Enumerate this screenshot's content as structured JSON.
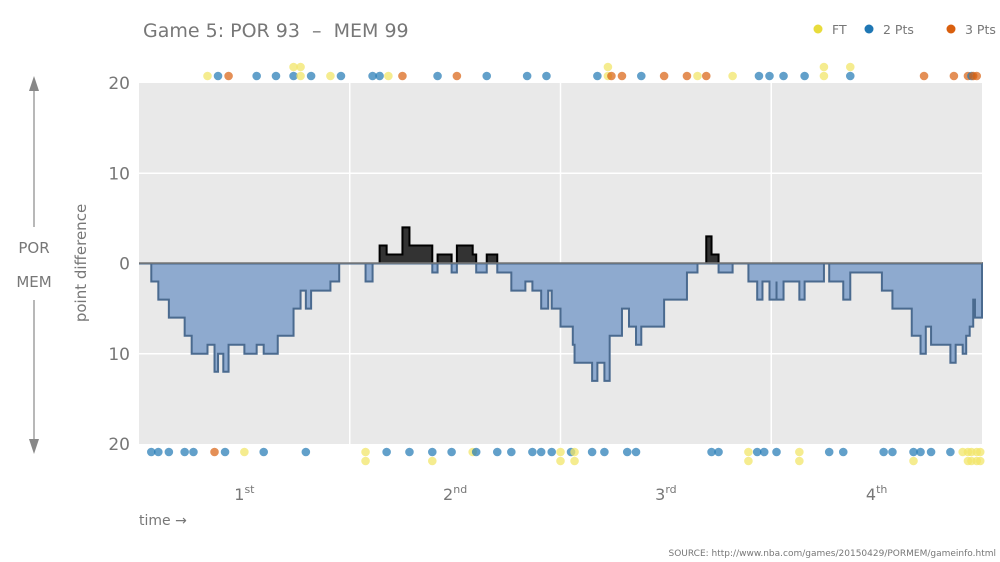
{
  "chart_data": {
    "type": "area",
    "title": "Game 5: POR 93  –  MEM 99",
    "xlabel": "time →",
    "ylabel": "point difference",
    "side_labels": {
      "top": "POR",
      "bottom": "MEM"
    },
    "source": "SOURCE: http://www.nba.com/games/20150429/PORMEM/gameinfo.html",
    "xlim": [
      0,
      48
    ],
    "ylim": [
      -20,
      20
    ],
    "y_ticks": [
      {
        "value": 20,
        "label": "20"
      },
      {
        "value": 10,
        "label": "10"
      },
      {
        "value": 0,
        "label": "0"
      },
      {
        "value": -10,
        "label": "10"
      },
      {
        "value": -20,
        "label": "20"
      }
    ],
    "quarters": [
      {
        "num": "1",
        "sup": "st"
      },
      {
        "num": "2",
        "sup": "nd"
      },
      {
        "num": "3",
        "sup": "rd"
      },
      {
        "num": "4",
        "sup": "th"
      }
    ],
    "grid": true,
    "legend_position": "top-right",
    "legend": [
      {
        "key": "FT",
        "label": "FT",
        "color": "#e8dc3c"
      },
      {
        "key": "2",
        "label": "2 Pts",
        "color": "#1f77b4"
      },
      {
        "key": "3",
        "label": "3 Pts",
        "color": "#d95f0e"
      }
    ],
    "colors": {
      "por_lead_fill": "#333333",
      "mem_lead_fill": "#8eaacf",
      "mem_lead_stroke": "#4a6a8f",
      "plot_bg": "#e9e9e9"
    },
    "score_diff": [
      [
        0,
        0
      ],
      [
        0.7,
        -2
      ],
      [
        1.1,
        -4
      ],
      [
        1.7,
        -6
      ],
      [
        2.6,
        -8
      ],
      [
        3.0,
        -10
      ],
      [
        3.9,
        -9
      ],
      [
        4.3,
        -12
      ],
      [
        4.5,
        -10
      ],
      [
        4.8,
        -12
      ],
      [
        5.1,
        -9
      ],
      [
        6.0,
        -10
      ],
      [
        6.7,
        -9
      ],
      [
        7.1,
        -10
      ],
      [
        7.9,
        -8
      ],
      [
        8.8,
        -5
      ],
      [
        9.2,
        -3
      ],
      [
        9.5,
        -5
      ],
      [
        9.8,
        -3
      ],
      [
        10.9,
        -2
      ],
      [
        11.4,
        0
      ],
      [
        12.9,
        -2
      ],
      [
        13.3,
        0
      ],
      [
        13.7,
        2
      ],
      [
        14.1,
        1
      ],
      [
        15.0,
        4
      ],
      [
        15.4,
        2
      ],
      [
        16.7,
        -1
      ],
      [
        17.0,
        1
      ],
      [
        17.8,
        -1
      ],
      [
        18.1,
        2
      ],
      [
        19.0,
        1
      ],
      [
        19.2,
        -1
      ],
      [
        19.8,
        1
      ],
      [
        20.4,
        -1
      ],
      [
        21.2,
        -3
      ],
      [
        22.0,
        -2
      ],
      [
        22.4,
        -3
      ],
      [
        22.9,
        -5
      ],
      [
        23.3,
        -3
      ],
      [
        23.5,
        -5
      ],
      [
        24.0,
        -7
      ],
      [
        24.7,
        -9
      ],
      [
        24.8,
        -11
      ],
      [
        25.8,
        -13
      ],
      [
        26.1,
        -11
      ],
      [
        26.5,
        -13
      ],
      [
        26.8,
        -8
      ],
      [
        27.5,
        -5
      ],
      [
        27.9,
        -7
      ],
      [
        28.3,
        -9
      ],
      [
        28.6,
        -7
      ],
      [
        29.9,
        -4
      ],
      [
        31.2,
        -1
      ],
      [
        31.8,
        0
      ],
      [
        32.3,
        3
      ],
      [
        32.6,
        1
      ],
      [
        33.0,
        -1
      ],
      [
        33.8,
        0
      ],
      [
        34.7,
        -2
      ],
      [
        35.2,
        -4
      ],
      [
        35.5,
        -2
      ],
      [
        35.9,
        -4
      ],
      [
        36.3,
        -2
      ],
      [
        36.3,
        -4
      ],
      [
        36.7,
        -2
      ],
      [
        37.6,
        -4
      ],
      [
        37.9,
        -2
      ],
      [
        39.0,
        0
      ],
      [
        39.3,
        -2
      ],
      [
        40.1,
        -4
      ],
      [
        40.5,
        -1
      ],
      [
        42.3,
        -3
      ],
      [
        42.9,
        -5
      ],
      [
        44.0,
        -8
      ],
      [
        44.5,
        -10
      ],
      [
        44.8,
        -7
      ],
      [
        45.1,
        -9
      ],
      [
        46.2,
        -11
      ],
      [
        46.5,
        -9
      ],
      [
        46.9,
        -10
      ],
      [
        47.1,
        -8
      ],
      [
        47.3,
        -7
      ],
      [
        47.5,
        -4
      ],
      [
        47.6,
        -6
      ],
      [
        48,
        -6
      ]
    ],
    "por_scores": [
      [
        3.9,
        "FT"
      ],
      [
        4.5,
        "2"
      ],
      [
        5.1,
        "3"
      ],
      [
        6.7,
        "2"
      ],
      [
        7.8,
        "2"
      ],
      [
        8.8,
        "2"
      ],
      [
        8.8,
        "FT"
      ],
      [
        9.2,
        "FT"
      ],
      [
        9.2,
        "FT"
      ],
      [
        9.8,
        "2"
      ],
      [
        10.9,
        "FT"
      ],
      [
        11.5,
        "2"
      ],
      [
        13.3,
        "2"
      ],
      [
        13.7,
        "2"
      ],
      [
        14.2,
        "FT"
      ],
      [
        15.0,
        "3"
      ],
      [
        17.0,
        "2"
      ],
      [
        18.1,
        "3"
      ],
      [
        19.8,
        "2"
      ],
      [
        22.1,
        "2"
      ],
      [
        23.2,
        "2"
      ],
      [
        26.1,
        "2"
      ],
      [
        26.7,
        "FT"
      ],
      [
        26.7,
        "FT"
      ],
      [
        26.9,
        "3"
      ],
      [
        27.5,
        "3"
      ],
      [
        28.6,
        "2"
      ],
      [
        29.9,
        "3"
      ],
      [
        31.2,
        "3"
      ],
      [
        31.8,
        "FT"
      ],
      [
        32.3,
        "3"
      ],
      [
        33.8,
        "FT"
      ],
      [
        35.3,
        "2"
      ],
      [
        35.9,
        "2"
      ],
      [
        36.7,
        "2"
      ],
      [
        37.9,
        "2"
      ],
      [
        39.0,
        "FT"
      ],
      [
        39.0,
        "FT"
      ],
      [
        40.5,
        "2"
      ],
      [
        40.5,
        "FT"
      ],
      [
        44.7,
        "3"
      ],
      [
        46.4,
        "3"
      ],
      [
        47.2,
        "3"
      ],
      [
        47.4,
        "2"
      ],
      [
        47.5,
        "3"
      ],
      [
        47.7,
        "3"
      ]
    ],
    "mem_scores": [
      [
        0.7,
        "2"
      ],
      [
        1.1,
        "2"
      ],
      [
        1.7,
        "2"
      ],
      [
        2.6,
        "2"
      ],
      [
        3.1,
        "2"
      ],
      [
        4.3,
        "3"
      ],
      [
        4.9,
        "2"
      ],
      [
        6.0,
        "FT"
      ],
      [
        7.1,
        "2"
      ],
      [
        9.5,
        "2"
      ],
      [
        12.9,
        "FT"
      ],
      [
        12.9,
        "FT"
      ],
      [
        14.1,
        "2"
      ],
      [
        15.4,
        "2"
      ],
      [
        16.7,
        "2"
      ],
      [
        16.7,
        "FT"
      ],
      [
        17.8,
        "2"
      ],
      [
        19.0,
        "FT"
      ],
      [
        19.2,
        "2"
      ],
      [
        20.4,
        "2"
      ],
      [
        21.2,
        "2"
      ],
      [
        22.4,
        "2"
      ],
      [
        22.9,
        "2"
      ],
      [
        23.5,
        "2"
      ],
      [
        24.0,
        "FT"
      ],
      [
        24.0,
        "FT"
      ],
      [
        24.6,
        "2"
      ],
      [
        24.8,
        "FT"
      ],
      [
        24.8,
        "FT"
      ],
      [
        25.8,
        "2"
      ],
      [
        26.5,
        "2"
      ],
      [
        27.8,
        "2"
      ],
      [
        28.3,
        "2"
      ],
      [
        32.6,
        "2"
      ],
      [
        33.0,
        "2"
      ],
      [
        34.7,
        "FT"
      ],
      [
        34.7,
        "FT"
      ],
      [
        35.2,
        "2"
      ],
      [
        35.6,
        "2"
      ],
      [
        36.3,
        "2"
      ],
      [
        37.6,
        "FT"
      ],
      [
        37.6,
        "FT"
      ],
      [
        39.3,
        "2"
      ],
      [
        40.1,
        "2"
      ],
      [
        42.4,
        "2"
      ],
      [
        42.9,
        "2"
      ],
      [
        44.1,
        "2"
      ],
      [
        44.1,
        "FT"
      ],
      [
        44.5,
        "2"
      ],
      [
        45.1,
        "2"
      ],
      [
        46.2,
        "2"
      ],
      [
        46.9,
        "FT"
      ],
      [
        47.2,
        "FT"
      ],
      [
        47.2,
        "FT"
      ],
      [
        47.4,
        "FT"
      ],
      [
        47.4,
        "FT"
      ],
      [
        47.7,
        "FT"
      ],
      [
        47.7,
        "FT"
      ],
      [
        47.9,
        "FT"
      ],
      [
        47.9,
        "FT"
      ]
    ]
  }
}
